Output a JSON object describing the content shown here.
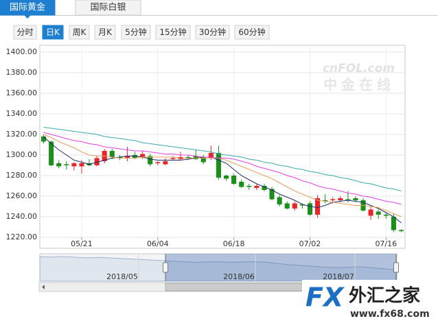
{
  "tabs": [
    "国际黄金",
    "国际白银"
  ],
  "buttons": [
    "分时",
    "日K",
    "周K",
    "月K",
    "5分钟",
    "15分钟",
    "30分钟",
    "60分钟"
  ],
  "active_tab": 0,
  "active_button": 1,
  "chart_data": {
    "type": "candlestick",
    "categories": [
      null,
      null,
      null,
      null,
      null,
      "05/21",
      null,
      null,
      null,
      null,
      null,
      null,
      null,
      null,
      null,
      "06/04",
      null,
      null,
      null,
      null,
      null,
      null,
      null,
      null,
      null,
      "06/18",
      null,
      null,
      null,
      null,
      null,
      null,
      null,
      null,
      null,
      "07/02",
      null,
      null,
      null,
      null,
      null,
      null,
      null,
      null,
      null,
      "07/16",
      null,
      null
    ],
    "open": [
      1318,
      1313,
      1292,
      1291,
      1289,
      1289,
      1292,
      1290,
      1294,
      1304,
      1298,
      1297,
      1300,
      1298,
      1299,
      1292,
      1291,
      1296,
      1296,
      1298,
      1299,
      1298,
      1297,
      1302,
      1280,
      1280,
      1274,
      1270,
      1268,
      1270,
      1267,
      1259,
      1253,
      1248,
      1252,
      1253,
      1242,
      1256,
      1256,
      1256,
      1257,
      1258,
      1256,
      1241,
      1245,
      1242,
      1240,
      1227
    ],
    "high": [
      1320,
      1314,
      1295,
      1294,
      1293,
      1295,
      1296,
      1299,
      1306,
      1306,
      1300,
      1308,
      1303,
      1304,
      1301,
      1294,
      1297,
      1299,
      1303,
      1300,
      1305,
      1300,
      1309,
      1309,
      1281,
      1282,
      1276,
      1272,
      1272,
      1272,
      1269,
      1261,
      1255,
      1255,
      1253,
      1255,
      1261,
      1262,
      1259,
      1260,
      1265,
      1260,
      1258,
      1250,
      1247,
      1244,
      1243,
      1228
    ],
    "low": [
      1311,
      1289,
      1287,
      1286,
      1285,
      1282,
      1289,
      1289,
      1292,
      1296,
      1295,
      1294,
      1296,
      1296,
      1289,
      1290,
      1290,
      1295,
      1295,
      1295,
      1295,
      1291,
      1295,
      1276,
      1275,
      1271,
      1268,
      1266,
      1266,
      1265,
      1256,
      1250,
      1247,
      1246,
      1248,
      1241,
      1239,
      1253,
      1253,
      1254,
      1254,
      1254,
      1245,
      1237,
      1238,
      1238,
      1225,
      1225
    ],
    "close": [
      1313,
      1290,
      1289,
      1290,
      1292,
      1292,
      1290,
      1297,
      1304,
      1298,
      1297,
      1299,
      1297,
      1301,
      1291,
      1293,
      1294,
      1297,
      1298,
      1297,
      1296,
      1293,
      1302,
      1278,
      1277,
      1272,
      1269,
      1269,
      1270,
      1266,
      1257,
      1252,
      1248,
      1253,
      1251,
      1242,
      1258,
      1255,
      1257,
      1258,
      1256,
      1256,
      1246,
      1247,
      1242,
      1241,
      1227,
      1226
    ],
    "up_color": "#e8262a",
    "down_color": "#1a8f1a",
    "series": [
      {
        "color": "#1f2d6b",
        "values": [
          1318,
          1311,
          1305,
          1300,
          1295,
          1293,
          1291,
          1293,
          1295,
          1297,
          1298,
          1299,
          1299,
          1298,
          1296,
          1295,
          1295,
          1295,
          1295,
          1296,
          1297,
          1298,
          1298,
          1295,
          1292,
          1286,
          1280,
          1276,
          1272,
          1269,
          1266,
          1262,
          1259,
          1256,
          1252,
          1250,
          1249,
          1251,
          1254,
          1255,
          1256,
          1255,
          1254,
          1251,
          1248,
          1244,
          1240,
          1234
        ]
      },
      {
        "color": "#e8a060",
        "values": [
          1320,
          1317,
          1313,
          1310,
          1307,
          1303,
          1300,
          1299,
          1299,
          1298,
          1297,
          1297,
          1297,
          1298,
          1298,
          1298,
          1298,
          1298,
          1297,
          1297,
          1297,
          1297,
          1297,
          1297,
          1295,
          1292,
          1289,
          1286,
          1283,
          1280,
          1277,
          1273,
          1269,
          1265,
          1262,
          1259,
          1256,
          1255,
          1254,
          1253,
          1252,
          1251,
          1251,
          1250,
          1249,
          1246,
          1243,
          1240
        ]
      },
      {
        "color": "#e040e0",
        "values": [
          1322,
          1320,
          1318,
          1316,
          1314,
          1313,
          1311,
          1310,
          1308,
          1307,
          1306,
          1305,
          1304,
          1304,
          1303,
          1302,
          1301,
          1301,
          1300,
          1300,
          1299,
          1298,
          1298,
          1297,
          1297,
          1296,
          1294,
          1292,
          1289,
          1287,
          1285,
          1283,
          1280,
          1278,
          1275,
          1273,
          1270,
          1268,
          1267,
          1265,
          1263,
          1262,
          1260,
          1259,
          1257,
          1255,
          1254,
          1252
        ]
      },
      {
        "color": "#3aa8b0",
        "values": [
          1327,
          1326,
          1325,
          1324,
          1323,
          1322,
          1321,
          1320,
          1318,
          1317,
          1316,
          1315,
          1314,
          1312,
          1311,
          1310,
          1309,
          1308,
          1307,
          1306,
          1305,
          1304,
          1303,
          1301,
          1300,
          1299,
          1298,
          1296,
          1295,
          1293,
          1292,
          1290,
          1289,
          1287,
          1286,
          1284,
          1283,
          1281,
          1280,
          1278,
          1277,
          1275,
          1273,
          1272,
          1270,
          1268,
          1267,
          1265
        ]
      }
    ],
    "ylim": [
      1220,
      1400
    ],
    "yticks": [
      {
        "value": 1220,
        "label": "1220.00"
      },
      {
        "value": 1240,
        "label": "1240.00"
      },
      {
        "value": 1260,
        "label": "1260.00"
      },
      {
        "value": 1280,
        "label": "1280.00"
      },
      {
        "value": 1300,
        "label": "1300.00"
      },
      {
        "value": 1320,
        "label": "1320.00"
      },
      {
        "value": 1340,
        "label": "1340.00"
      },
      {
        "value": 1360,
        "label": "1360.00"
      },
      {
        "value": 1380,
        "label": "1380.00"
      },
      {
        "value": 1400,
        "label": "1400.00"
      }
    ],
    "grid": true
  },
  "navigator": {
    "values": [
      1340,
      1338,
      1342,
      1336,
      1332,
      1335,
      1330,
      1325,
      1320,
      1315,
      1310,
      1305,
      1300,
      1295,
      1298,
      1300,
      1295,
      1298,
      1300,
      1296,
      1285,
      1275,
      1270,
      1262,
      1255,
      1250,
      1255,
      1258,
      1250,
      1242,
      1230
    ],
    "labels": [
      "2018/05",
      "2018/06",
      "2018/07"
    ]
  },
  "watermark": {
    "brand": "cnFOL.com",
    "name": "中金在线"
  },
  "logo": {
    "fx": "FX",
    "name": "外汇之家",
    "url": "www.fx68.com"
  }
}
